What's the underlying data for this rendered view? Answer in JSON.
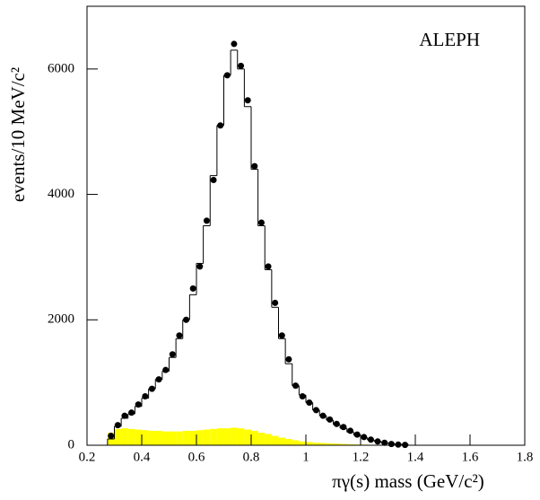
{
  "chart_data": {
    "type": "histogram",
    "annotation": "ALEPH",
    "xlabel": "πγ(s)  mass (GeV/c²)",
    "ylabel": "events/10 MeV/c²",
    "xlim": [
      0.2,
      1.8
    ],
    "ylim": [
      0,
      7000
    ],
    "xticks": [
      0.2,
      0.4,
      0.6,
      0.8,
      1,
      1.2,
      1.4,
      1.6,
      1.8
    ],
    "yticks": [
      0,
      2000,
      4000,
      6000
    ],
    "bins": [
      0.275,
      0.3,
      0.325,
      0.35,
      0.375,
      0.4,
      0.425,
      0.45,
      0.475,
      0.5,
      0.525,
      0.55,
      0.575,
      0.6,
      0.625,
      0.65,
      0.675,
      0.7,
      0.725,
      0.75,
      0.775,
      0.8,
      0.825,
      0.85,
      0.875,
      0.9,
      0.925,
      0.95,
      0.975,
      1.0,
      1.025,
      1.05,
      1.075,
      1.1,
      1.125,
      1.15,
      1.175,
      1.2,
      1.225,
      1.25,
      1.275,
      1.3,
      1.325,
      1.35,
      1.375
    ],
    "series": [
      {
        "style": "filled",
        "color": "#ffff00",
        "values": [
          200,
          260,
          270,
          260,
          250,
          240,
          230,
          230,
          220,
          220,
          220,
          230,
          230,
          240,
          250,
          260,
          270,
          270,
          280,
          270,
          250,
          230,
          200,
          180,
          150,
          120,
          100,
          80,
          60,
          50,
          40,
          35,
          30,
          25,
          20,
          15,
          12,
          10,
          8,
          6,
          4,
          3,
          2,
          1
        ]
      },
      {
        "style": "step",
        "color": "#000000",
        "values": [
          100,
          300,
          430,
          500,
          620,
          750,
          900,
          1050,
          1180,
          1400,
          1700,
          2000,
          2400,
          2900,
          3500,
          4300,
          5100,
          5900,
          6300,
          6000,
          5400,
          4400,
          3500,
          2800,
          2200,
          1700,
          1300,
          950,
          800,
          680,
          560,
          470,
          400,
          330,
          270,
          210,
          160,
          120,
          85,
          60,
          40,
          25,
          15,
          10
        ]
      },
      {
        "style": "points",
        "color": "#000000",
        "values": [
          150,
          320,
          470,
          520,
          650,
          780,
          900,
          1050,
          1200,
          1450,
          1750,
          2000,
          2500,
          2850,
          3580,
          4230,
          5100,
          5900,
          6400,
          6050,
          5500,
          4450,
          3550,
          2850,
          2270,
          1750,
          1370,
          950,
          780,
          680,
          560,
          470,
          410,
          340,
          290,
          230,
          170,
          130,
          90,
          60,
          40,
          20,
          10,
          5
        ]
      }
    ]
  }
}
